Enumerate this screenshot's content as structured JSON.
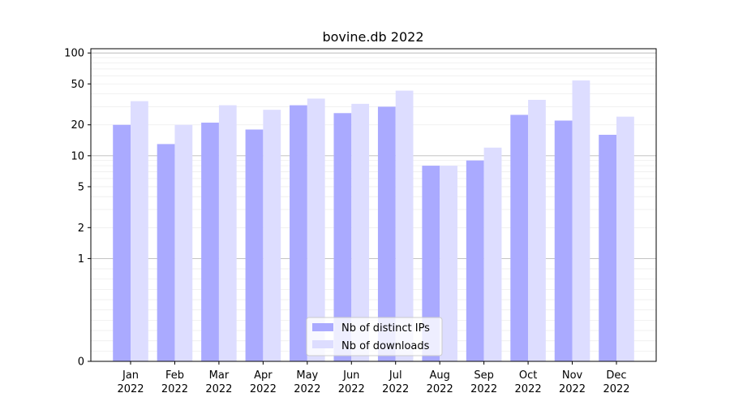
{
  "chart_data": {
    "type": "bar",
    "title": "bovine.db 2022",
    "xlabel": "",
    "ylabel": "",
    "yscale": "symlog",
    "ylim": [
      0,
      110
    ],
    "yticks": [
      "0",
      "1",
      "2",
      "5",
      "10",
      "20",
      "50",
      "100"
    ],
    "grid": true,
    "legend_position": "bottom-center",
    "categories": [
      {
        "month": "Jan",
        "year": "2022"
      },
      {
        "month": "Feb",
        "year": "2022"
      },
      {
        "month": "Mar",
        "year": "2022"
      },
      {
        "month": "Apr",
        "year": "2022"
      },
      {
        "month": "May",
        "year": "2022"
      },
      {
        "month": "Jun",
        "year": "2022"
      },
      {
        "month": "Jul",
        "year": "2022"
      },
      {
        "month": "Aug",
        "year": "2022"
      },
      {
        "month": "Sep",
        "year": "2022"
      },
      {
        "month": "Oct",
        "year": "2022"
      },
      {
        "month": "Nov",
        "year": "2022"
      },
      {
        "month": "Dec",
        "year": "2022"
      }
    ],
    "series": [
      {
        "name": "Nb of distinct IPs",
        "color": "#aaaaff",
        "values": [
          20,
          13,
          21,
          18,
          31,
          26,
          30,
          8,
          9,
          25,
          22,
          16
        ]
      },
      {
        "name": "Nb of downloads",
        "color": "#ddddff",
        "values": [
          34,
          20,
          31,
          28,
          36,
          32,
          43,
          8,
          12,
          35,
          54,
          24
        ]
      }
    ]
  }
}
